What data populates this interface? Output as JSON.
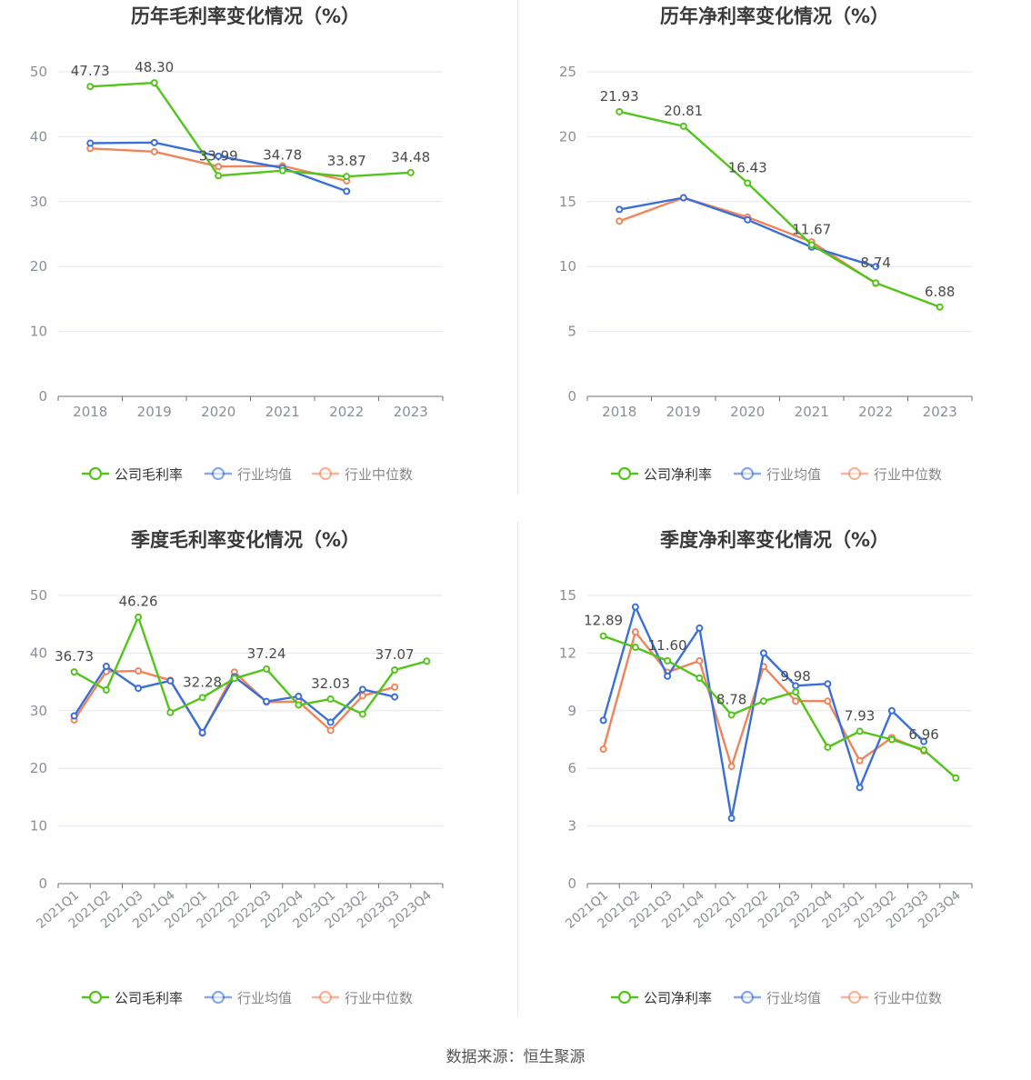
{
  "colors": {
    "company": "#52c41a",
    "avg": "#3a6fd8",
    "median": "#f0845a"
  },
  "source_label": "数据来源：恒生聚源",
  "chart_data": [
    {
      "type": "line",
      "title": "历年毛利率变化情况（%）",
      "categories": [
        "2018",
        "2019",
        "2020",
        "2021",
        "2022",
        "2023"
      ],
      "ylim": [
        0,
        50
      ],
      "yticks": [
        0,
        10,
        20,
        30,
        40,
        50
      ],
      "grid": true,
      "legend": "bottom",
      "series": [
        {
          "name": "公司毛利率",
          "values": [
            47.73,
            48.3,
            33.99,
            34.78,
            33.87,
            34.48
          ]
        },
        {
          "name": "行业均值",
          "values": [
            39.0,
            39.1,
            37.0,
            35.2,
            31.6,
            null
          ]
        },
        {
          "name": "行业中位数",
          "values": [
            38.2,
            37.7,
            35.4,
            35.5,
            33.2,
            null
          ]
        }
      ],
      "data_labels": [
        "47.73",
        "48.30",
        "33.99",
        "34.78",
        "33.87",
        "34.48"
      ]
    },
    {
      "type": "line",
      "title": "历年净利率变化情况（%）",
      "categories": [
        "2018",
        "2019",
        "2020",
        "2021",
        "2022",
        "2023"
      ],
      "ylim": [
        0,
        25
      ],
      "yticks": [
        0,
        5,
        10,
        15,
        20,
        25
      ],
      "grid": true,
      "legend": "bottom",
      "series": [
        {
          "name": "公司净利率",
          "values": [
            21.93,
            20.81,
            16.43,
            11.67,
            8.74,
            6.88
          ]
        },
        {
          "name": "行业均值",
          "values": [
            14.4,
            15.3,
            13.6,
            11.5,
            10.0,
            null
          ]
        },
        {
          "name": "行业中位数",
          "values": [
            13.5,
            15.3,
            13.8,
            11.9,
            8.7,
            null
          ]
        }
      ],
      "data_labels": [
        "21.93",
        "20.81",
        "16.43",
        "11.67",
        "8.74",
        "6.88"
      ]
    },
    {
      "type": "line",
      "title": "季度毛利率变化情况（%）",
      "categories": [
        "2021Q1",
        "2021Q2",
        "2021Q3",
        "2021Q4",
        "2022Q1",
        "2022Q2",
        "2022Q3",
        "2022Q4",
        "2023Q1",
        "2023Q2",
        "2023Q3",
        "2023Q4"
      ],
      "ylim": [
        0,
        50
      ],
      "yticks": [
        0,
        10,
        20,
        30,
        40,
        50
      ],
      "grid": true,
      "legend": "bottom",
      "series": [
        {
          "name": "公司毛利率",
          "values": [
            36.73,
            33.6,
            46.26,
            29.7,
            32.28,
            35.6,
            37.24,
            31.0,
            32.03,
            29.4,
            37.07,
            38.6
          ]
        },
        {
          "name": "行业均值",
          "values": [
            29.1,
            37.7,
            33.9,
            35.2,
            26.2,
            35.9,
            31.6,
            32.5,
            28.0,
            33.7,
            32.4,
            null
          ]
        },
        {
          "name": "行业中位数",
          "values": [
            28.4,
            36.8,
            36.9,
            35.3,
            26.1,
            36.7,
            31.5,
            31.6,
            26.6,
            32.6,
            34.1,
            null
          ]
        }
      ],
      "data_labels": [
        "36.73",
        "",
        "46.26",
        "",
        "32.28",
        "",
        "37.24",
        "",
        "32.03",
        "",
        "37.07",
        ""
      ]
    },
    {
      "type": "line",
      "title": "季度净利率变化情况（%）",
      "categories": [
        "2021Q1",
        "2021Q2",
        "2021Q3",
        "2021Q4",
        "2022Q1",
        "2022Q2",
        "2022Q3",
        "2022Q4",
        "2023Q1",
        "2023Q2",
        "2023Q3",
        "2023Q4"
      ],
      "ylim": [
        0,
        15
      ],
      "yticks": [
        0,
        3,
        6,
        9,
        12,
        15
      ],
      "grid": true,
      "legend": "bottom",
      "series": [
        {
          "name": "公司净利率",
          "values": [
            12.89,
            12.3,
            11.6,
            10.7,
            8.78,
            9.5,
            9.98,
            7.1,
            7.93,
            7.5,
            6.96,
            5.5
          ]
        },
        {
          "name": "行业均值",
          "values": [
            8.5,
            14.4,
            10.8,
            13.3,
            3.4,
            12.0,
            10.3,
            10.4,
            5.0,
            9.0,
            7.4,
            null
          ]
        },
        {
          "name": "行业中位数",
          "values": [
            7.0,
            13.1,
            11.0,
            11.6,
            6.1,
            11.3,
            9.5,
            9.5,
            6.4,
            7.6,
            6.9,
            null
          ]
        }
      ],
      "data_labels": [
        "12.89",
        "",
        "11.60",
        "",
        "8.78",
        "",
        "9.98",
        "",
        "7.93",
        "",
        "6.96",
        ""
      ]
    }
  ]
}
